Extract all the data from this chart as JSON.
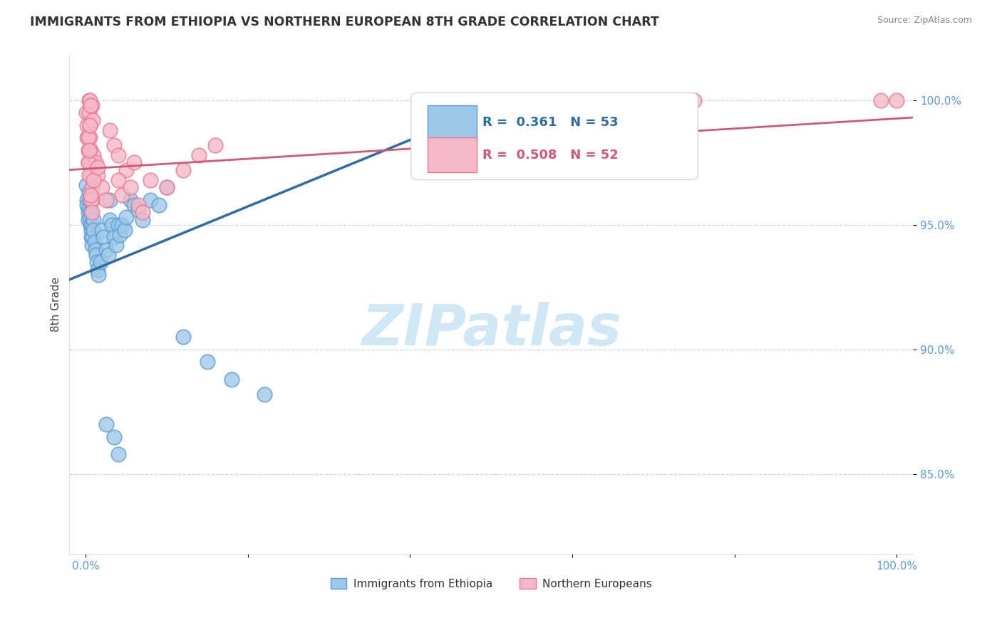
{
  "title": "IMMIGRANTS FROM ETHIOPIA VS NORTHERN EUROPEAN 8TH GRADE CORRELATION CHART",
  "source": "Source: ZipAtlas.com",
  "ylabel": "8th Grade",
  "xlim": [
    -0.02,
    1.02
  ],
  "ylim": [
    0.818,
    1.018
  ],
  "ytick_vals": [
    0.85,
    0.9,
    0.95,
    1.0
  ],
  "ytick_labels": [
    "85.0%",
    "90.0%",
    "95.0%",
    "100.0%"
  ],
  "xtick_vals": [
    0.0,
    0.2,
    0.4,
    0.6,
    0.8,
    1.0
  ],
  "xtick_labels": [
    "0.0%",
    "",
    "",
    "",
    "",
    "100.0%"
  ],
  "tick_color": "#5b9bd5",
  "grid_color": "#c8d8e8",
  "scatter_blue_face": "#9ec8e8",
  "scatter_blue_edge": "#5b9bd5",
  "scatter_pink_face": "#f5b8c8",
  "scatter_pink_edge": "#e87890",
  "line_blue": "#2e6da4",
  "line_pink": "#d05878",
  "watermark_color": "#c8e4f5",
  "legend_text_blue": "#2e6da4",
  "legend_text_pink": "#d05878",
  "eth_x": [
    0.001,
    0.002,
    0.002,
    0.003,
    0.003,
    0.004,
    0.004,
    0.005,
    0.005,
    0.006,
    0.006,
    0.007,
    0.007,
    0.008,
    0.008,
    0.009,
    0.01,
    0.01,
    0.011,
    0.012,
    0.013,
    0.014,
    0.015,
    0.016,
    0.018,
    0.02,
    0.022,
    0.025,
    0.028,
    0.03,
    0.032,
    0.035,
    0.038,
    0.04,
    0.042,
    0.045,
    0.048,
    0.05,
    0.055,
    0.06,
    0.065,
    0.07,
    0.08,
    0.09,
    0.1,
    0.12,
    0.15,
    0.18,
    0.22,
    0.03,
    0.025,
    0.035,
    0.04
  ],
  "eth_y": [
    0.966,
    0.96,
    0.958,
    0.955,
    0.952,
    0.963,
    0.957,
    0.96,
    0.953,
    0.955,
    0.95,
    0.948,
    0.945,
    0.942,
    0.95,
    0.945,
    0.952,
    0.948,
    0.943,
    0.94,
    0.938,
    0.935,
    0.932,
    0.93,
    0.935,
    0.948,
    0.945,
    0.94,
    0.938,
    0.952,
    0.95,
    0.945,
    0.942,
    0.95,
    0.946,
    0.95,
    0.948,
    0.953,
    0.96,
    0.958,
    0.956,
    0.952,
    0.96,
    0.958,
    0.965,
    0.905,
    0.895,
    0.888,
    0.882,
    0.96,
    0.87,
    0.865,
    0.858
  ],
  "nor_x": [
    0.001,
    0.002,
    0.002,
    0.003,
    0.003,
    0.004,
    0.004,
    0.005,
    0.005,
    0.006,
    0.006,
    0.007,
    0.008,
    0.009,
    0.01,
    0.012,
    0.015,
    0.02,
    0.025,
    0.03,
    0.035,
    0.04,
    0.05,
    0.06,
    0.08,
    0.1,
    0.12,
    0.14,
    0.16,
    0.04,
    0.045,
    0.055,
    0.065,
    0.07,
    0.008,
    0.009,
    0.005,
    0.006,
    0.68,
    0.75,
    0.98,
    1.0,
    0.003,
    0.004,
    0.007,
    0.008,
    0.003,
    0.004,
    0.005,
    0.006,
    0.01,
    0.015
  ],
  "nor_y": [
    0.995,
    0.99,
    0.985,
    0.98,
    0.975,
    1.0,
    0.995,
    0.99,
    0.985,
    0.98,
    0.975,
    0.97,
    0.965,
    0.96,
    0.978,
    0.975,
    0.97,
    0.965,
    0.96,
    0.988,
    0.982,
    0.978,
    0.972,
    0.975,
    0.968,
    0.965,
    0.972,
    0.978,
    0.982,
    0.968,
    0.962,
    0.965,
    0.958,
    0.955,
    0.998,
    0.992,
    1.0,
    0.998,
    1.0,
    1.0,
    1.0,
    1.0,
    0.975,
    0.97,
    0.96,
    0.955,
    0.985,
    0.98,
    0.99,
    0.962,
    0.968,
    0.973
  ]
}
